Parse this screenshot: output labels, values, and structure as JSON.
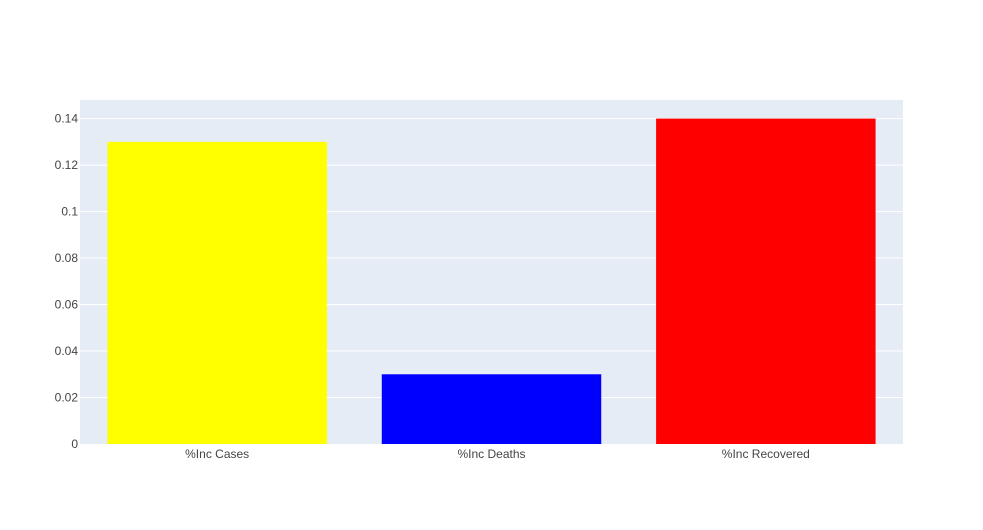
{
  "chart_data": {
    "type": "bar",
    "title": "",
    "xlabel": "",
    "ylabel": "",
    "categories": [
      "%Inc Cases",
      "%Inc Deaths",
      "%Inc Recovered"
    ],
    "values": [
      0.13,
      0.03,
      0.14
    ],
    "bar_colors": [
      "#ffff00",
      "#0000ff",
      "#ff0000"
    ],
    "ylim": [
      0,
      0.148
    ],
    "yticks": [
      0,
      0.02,
      0.04,
      0.06,
      0.08,
      0.1,
      0.12,
      0.14
    ],
    "ytick_labels": [
      "0",
      "0.02",
      "0.04",
      "0.06",
      "0.08",
      "0.1",
      "0.12",
      "0.14"
    ],
    "grid": true,
    "plot_background": "#e5ecf6",
    "gridline_color": "#ffffff",
    "legend": "none"
  }
}
